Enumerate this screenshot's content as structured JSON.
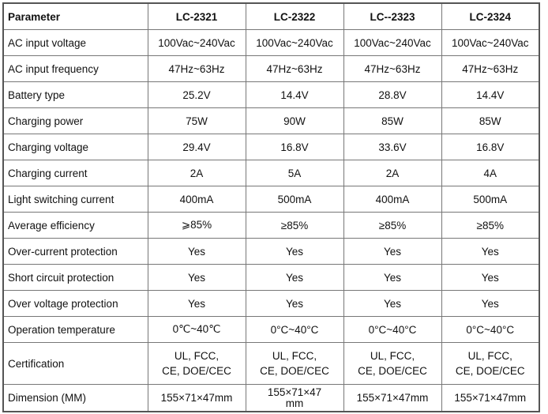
{
  "table": {
    "header": [
      "Parameter",
      "LC-2321",
      "LC-2322",
      "LC--2323",
      "LC-2324"
    ],
    "rows": [
      [
        "AC input voltage",
        "100Vac~240Vac",
        "100Vac~240Vac",
        "100Vac~240Vac",
        "100Vac~240Vac"
      ],
      [
        "AC input frequency",
        "47Hz~63Hz",
        "47Hz~63Hz",
        "47Hz~63Hz",
        "47Hz~63Hz"
      ],
      [
        "Battery type",
        "25.2V",
        "14.4V",
        "28.8V",
        "14.4V"
      ],
      [
        "Charging power",
        "75W",
        "90W",
        "85W",
        "85W"
      ],
      [
        "Charging voltage",
        "29.4V",
        "16.8V",
        "33.6V",
        "16.8V"
      ],
      [
        "Charging current",
        "2A",
        "5A",
        "2A",
        "4A"
      ],
      [
        "Light switching current",
        "400mA",
        "500mA",
        "400mA",
        "500mA"
      ],
      [
        "Average efficiency",
        "⩾85%",
        "≥85%",
        "≥85%",
        "≥85%"
      ],
      [
        "Over-current protection",
        "Yes",
        "Yes",
        "Yes",
        "Yes"
      ],
      [
        "Short circuit protection",
        "Yes",
        "Yes",
        "Yes",
        "Yes"
      ],
      [
        "Over voltage protection",
        "Yes",
        "Yes",
        "Yes",
        "Yes"
      ],
      [
        "Operation temperature",
        "0℃~40℃",
        "0°C~40°C",
        "0°C~40°C",
        "0°C~40°C"
      ],
      [
        "Certification",
        [
          "UL,  FCC,",
          "CE,  DOE/CEC"
        ],
        [
          "UL,  FCC,",
          "CE,  DOE/CEC"
        ],
        [
          "UL,  FCC,",
          "CE,  DOE/CEC"
        ],
        [
          "UL,  FCC,",
          "CE,  DOE/CEC"
        ]
      ],
      [
        "Dimension (MM)",
        "155×71×47mm",
        "155×71×47mm",
        "155×71×47mm",
        "155×71×47mm"
      ]
    ]
  }
}
